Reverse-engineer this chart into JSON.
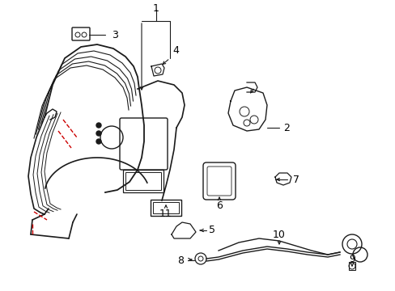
{
  "bg_color": "#ffffff",
  "line_color": "#1a1a1a",
  "red_color": "#cc0000",
  "label_color": "#000000",
  "figsize": [
    4.89,
    3.6
  ],
  "dpi": 100
}
